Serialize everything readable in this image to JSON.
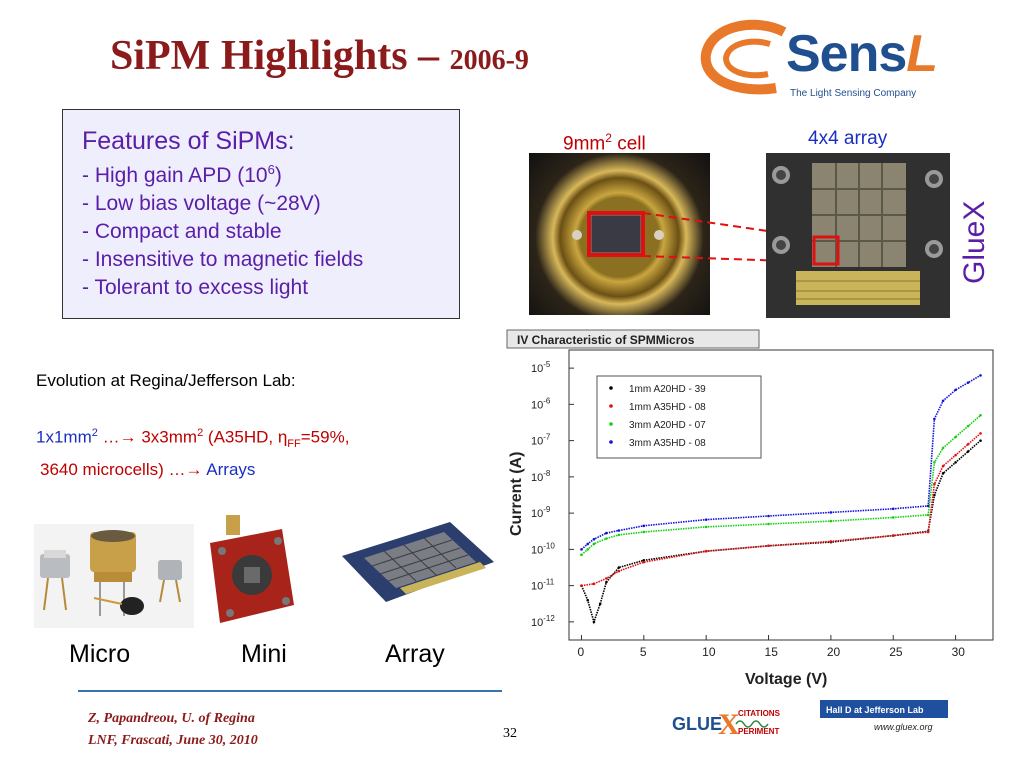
{
  "title": {
    "main": "SiPM Highlights – ",
    "year": "2006-9"
  },
  "logo": {
    "brand": "Sens",
    "brand_L": "L",
    "tagline": "The Light Sensing Company"
  },
  "features": {
    "title": "Features of SiPMs:",
    "items": [
      "- High gain APD (10",
      "6",
      ")",
      "- Low bias voltage (~28V)",
      "- Compact and stable",
      "- Insensitive to magnetic fields",
      "- Tolerant to excess light"
    ]
  },
  "photos": {
    "cell_caption": "9mm",
    "cell_caption_sup": "2",
    "cell_caption_end": " cell",
    "array_caption": "4x4 array",
    "side_label": "GlueX"
  },
  "evolution": {
    "heading": "Evolution at Regina/Jefferson Lab:",
    "line1_a": "1x1mm",
    "line1_sup": "2",
    "line1_b": "  …",
    "arrow": "→",
    "line1_c": " 3x3mm",
    "line1_d": "  (A35HD, ",
    "eta": "η",
    "ff": "FF",
    "line1_e": "=59%,",
    "line2_a": "3640 microcells) …",
    "line2_b": " Arrays"
  },
  "devices": [
    "Micro",
    "Mini",
    "Array"
  ],
  "chart_data": {
    "type": "scatter",
    "title": "IV Characteristic of SPMMicros",
    "xlabel": "Voltage (V)",
    "ylabel": "Current (A)",
    "xlim": [
      -1,
      33
    ],
    "ylim": [
      -12.5,
      -4.5
    ],
    "y_scale": "log",
    "x_ticks": [
      "0",
      "5",
      "10",
      "15",
      "20",
      "25",
      "30"
    ],
    "y_ticks": [
      "10-5",
      "10-6",
      "10-7",
      "10-8",
      "10-9",
      "10-10",
      "10-11",
      "10-12"
    ],
    "legend_position": "top-left",
    "series": [
      {
        "name": "1mm A20HD - 39",
        "color": "#000000",
        "x": [
          0,
          0.5,
          1,
          1.5,
          2,
          3,
          5,
          10,
          15,
          20,
          25,
          27.8,
          28.3,
          29,
          30,
          31,
          32
        ],
        "y": [
          -11,
          -11.4,
          -12,
          -11.5,
          -10.9,
          -10.5,
          -10.3,
          -10.05,
          -9.9,
          -9.8,
          -9.62,
          -9.5,
          -8.5,
          -7.9,
          -7.6,
          -7.3,
          -7.0
        ]
      },
      {
        "name": "1mm A35HD - 08",
        "color": "#e01010",
        "x": [
          0,
          1,
          2,
          3,
          5,
          10,
          15,
          20,
          25,
          27.8,
          28.3,
          29,
          30,
          31,
          32
        ],
        "y": [
          -11.0,
          -10.95,
          -10.8,
          -10.6,
          -10.35,
          -10.05,
          -9.9,
          -9.78,
          -9.62,
          -9.52,
          -8.2,
          -7.7,
          -7.4,
          -7.1,
          -6.8
        ]
      },
      {
        "name": "3mm A20HD - 07",
        "color": "#10d010",
        "x": [
          0,
          0.5,
          1,
          2,
          3,
          5,
          10,
          15,
          20,
          25,
          27.8,
          28.3,
          29,
          30,
          31,
          32
        ],
        "y": [
          -10.15,
          -10,
          -9.85,
          -9.7,
          -9.6,
          -9.52,
          -9.38,
          -9.3,
          -9.22,
          -9.12,
          -9.05,
          -7.6,
          -7.2,
          -6.9,
          -6.6,
          -6.3
        ]
      },
      {
        "name": "3mm A35HD - 08",
        "color": "#1010e0",
        "x": [
          0,
          0.5,
          1,
          2,
          3,
          5,
          10,
          15,
          20,
          25,
          27.8,
          28.3,
          29,
          30,
          31,
          32
        ],
        "y": [
          -10.0,
          -9.85,
          -9.72,
          -9.55,
          -9.48,
          -9.35,
          -9.18,
          -9.08,
          -8.98,
          -8.88,
          -8.8,
          -6.4,
          -5.9,
          -5.6,
          -5.4,
          -5.2
        ]
      }
    ]
  },
  "footer": {
    "line1": "Z, Papandreou, U. of Regina",
    "line2": "LNF, Frascati, June 30, 2010",
    "page": "32",
    "gluex_logo_a": "GLUE",
    "gluex_logo_x": "X",
    "gluex_logo_b": "CITATIONS",
    "gluex_logo_c": "PERIMENT",
    "hall_d": "Hall D at Jefferson Lab",
    "hall_url": "www.gluex.org"
  },
  "colors": {
    "title": "#8b1a1a",
    "feature_text": "#5a1ea8",
    "caption_blue": "#1a2fbf",
    "caption_red": "#c00000",
    "highlight_box": "#e01010"
  }
}
